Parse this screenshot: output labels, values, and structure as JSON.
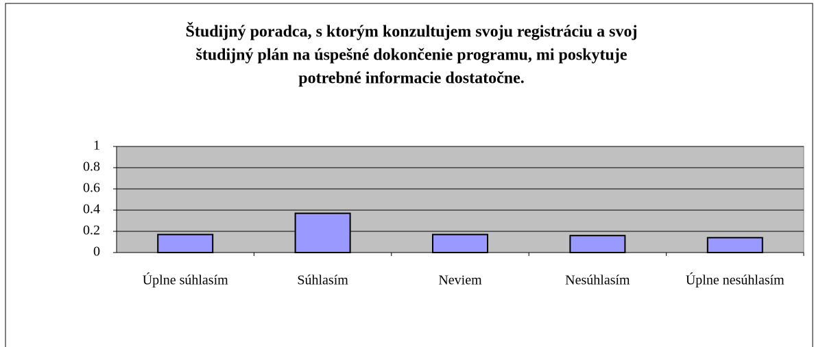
{
  "chart_data": {
    "type": "bar",
    "title": [
      "Študijný poradca, s ktorým konzultujem svoju registráciu a svoj",
      "študijný plán  na úspešné dokončenie programu, mi poskytuje",
      "potrebné informacie dostatočne."
    ],
    "categories": [
      "Úplne súhlasím",
      "Súhlasím",
      "Neviem",
      "Nesúhlasím",
      "Úplne nesúhlasím"
    ],
    "values": [
      0.17,
      0.37,
      0.17,
      0.16,
      0.14
    ],
    "color": "#9999ff",
    "ylim": [
      0,
      1
    ],
    "yticks": [
      0,
      0.2,
      0.4,
      0.6,
      0.8,
      1
    ],
    "grid": true
  }
}
